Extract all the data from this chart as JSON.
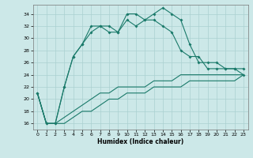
{
  "xlabel": "Humidex (Indice chaleur)",
  "xlim": [
    -0.5,
    23.5
  ],
  "ylim": [
    15,
    35.5
  ],
  "yticks": [
    16,
    18,
    20,
    22,
    24,
    26,
    28,
    30,
    32,
    34
  ],
  "xticks": [
    0,
    1,
    2,
    3,
    4,
    5,
    6,
    7,
    8,
    9,
    10,
    11,
    12,
    13,
    14,
    15,
    16,
    17,
    18,
    19,
    20,
    21,
    22,
    23
  ],
  "background_color": "#cce8e8",
  "grid_color": "#aad0d0",
  "line_color": "#1a7a6a",
  "series1": [
    21,
    16,
    16,
    22,
    27,
    29,
    32,
    32,
    32,
    31,
    34,
    34,
    33,
    34,
    35,
    34,
    33,
    29,
    26,
    26,
    26,
    25,
    25,
    25
  ],
  "series2": [
    21,
    16,
    16,
    22,
    27,
    29,
    31,
    32,
    31,
    31,
    33,
    32,
    33,
    33,
    32,
    31,
    28,
    27,
    27,
    25,
    25,
    25,
    25,
    24
  ],
  "series3": [
    21,
    16,
    16,
    17,
    18,
    19,
    20,
    21,
    21,
    22,
    22,
    22,
    22,
    23,
    23,
    23,
    24,
    24,
    24,
    24,
    24,
    24,
    24,
    24
  ],
  "series4": [
    21,
    16,
    16,
    16,
    17,
    18,
    18,
    19,
    20,
    20,
    21,
    21,
    21,
    22,
    22,
    22,
    22,
    23,
    23,
    23,
    23,
    23,
    23,
    24
  ]
}
